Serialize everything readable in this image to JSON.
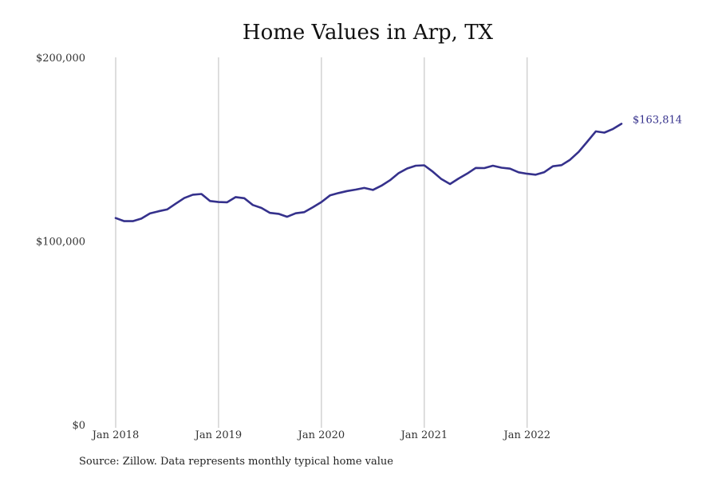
{
  "chart_data": {
    "type": "line",
    "title": "Home Values in Arp, TX",
    "source": "Source: Zillow. Data represents monthly typical home value",
    "y_ticks": [
      {
        "value": 0,
        "label": "$0"
      },
      {
        "value": 100000,
        "label": "$100,000"
      },
      {
        "value": 200000,
        "label": "$200,000"
      }
    ],
    "x_ticks": [
      {
        "value": "2018-01",
        "label": "Jan 2018"
      },
      {
        "value": "2019-01",
        "label": "Jan 2019"
      },
      {
        "value": "2020-01",
        "label": "Jan 2020"
      },
      {
        "value": "2021-01",
        "label": "Jan 2021"
      },
      {
        "value": "2022-01",
        "label": "Jan 2022"
      }
    ],
    "ylim": [
      0,
      200000
    ],
    "xlim": [
      "2018-01",
      "2022-12"
    ],
    "grid": "vertical",
    "line_color": "#35318c",
    "end_label": "$163,814",
    "series": [
      {
        "x": [
          "2018-01",
          "2018-02",
          "2018-03",
          "2018-04",
          "2018-05",
          "2018-06",
          "2018-07",
          "2018-08",
          "2018-09",
          "2018-10",
          "2018-11",
          "2018-12",
          "2019-01",
          "2019-02",
          "2019-03",
          "2019-04",
          "2019-05",
          "2019-06",
          "2019-07",
          "2019-08",
          "2019-09",
          "2019-10",
          "2019-11",
          "2019-12",
          "2020-01",
          "2020-02",
          "2020-03",
          "2020-04",
          "2020-05",
          "2020-06",
          "2020-07",
          "2020-08",
          "2020-09",
          "2020-10",
          "2020-11",
          "2020-12",
          "2021-01",
          "2021-02",
          "2021-03",
          "2021-04",
          "2021-05",
          "2021-06",
          "2021-07",
          "2021-08",
          "2021-09",
          "2021-10",
          "2021-11",
          "2021-12",
          "2022-01",
          "2022-02",
          "2022-03",
          "2022-04",
          "2022-05",
          "2022-06",
          "2022-07",
          "2022-08",
          "2022-09",
          "2022-10",
          "2022-11",
          "2022-12"
        ],
        "values": [
          112500,
          110800,
          110800,
          112200,
          115000,
          116200,
          117200,
          120300,
          123400,
          125200,
          125600,
          121800,
          121200,
          121100,
          123900,
          123300,
          119600,
          118000,
          115300,
          114800,
          113200,
          115100,
          115700,
          118400,
          121200,
          124800,
          126100,
          127200,
          128000,
          128900,
          127800,
          130100,
          133100,
          136900,
          139500,
          141000,
          141200,
          137700,
          133700,
          131000,
          134000,
          136700,
          139800,
          139700,
          141000,
          139900,
          139400,
          137400,
          136600,
          136100,
          137500,
          140700,
          141300,
          144200,
          148500,
          154000,
          159700,
          159000,
          161000,
          163814
        ]
      }
    ]
  }
}
